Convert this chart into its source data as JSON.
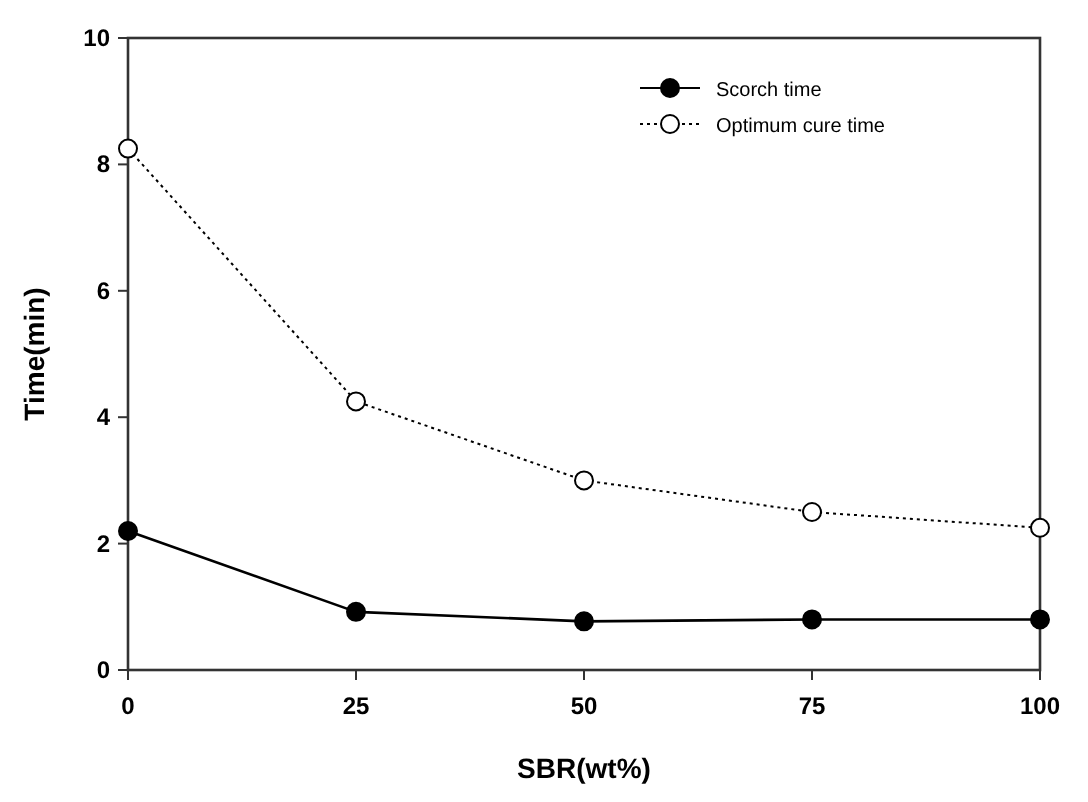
{
  "chart_data": {
    "type": "line",
    "xlabel": "SBR(wt%)",
    "ylabel": "Time(min)",
    "x": [
      0,
      25,
      50,
      75,
      100
    ],
    "series": [
      {
        "name": "Scorch time",
        "color": "#000000",
        "values": [
          2.2,
          0.92,
          0.77,
          0.8,
          0.8
        ],
        "marker": "circle",
        "line_style": "solid"
      },
      {
        "name": "Optimum cure time",
        "color": "#000000",
        "values": [
          8.25,
          4.25,
          3.0,
          2.5,
          2.25
        ],
        "marker": "circle",
        "line_style": "dotted"
      }
    ],
    "xlim": [
      0,
      100
    ],
    "xticks": [
      0,
      25,
      50,
      75,
      100
    ],
    "ylim": [
      0,
      10
    ],
    "yticks": [
      0,
      2,
      4,
      6,
      8,
      10
    ],
    "grid": false,
    "legend": "top right"
  }
}
